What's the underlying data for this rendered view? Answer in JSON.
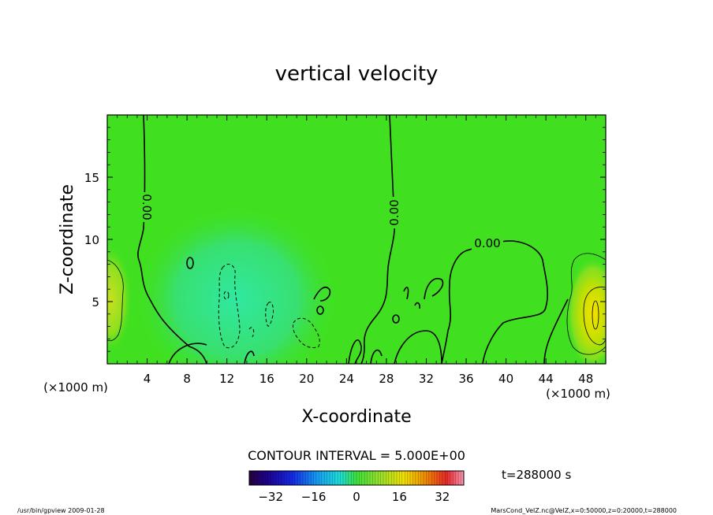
{
  "chart_data": {
    "type": "heatmap",
    "title": "vertical velocity",
    "xlabel": "X-coordinate",
    "ylabel": "Z-coordinate",
    "x_unit_left": "(×1000 m)",
    "x_unit_right": "(×1000 m)",
    "x_ticks": [
      "4",
      "8",
      "12",
      "16",
      "20",
      "24",
      "28",
      "32",
      "36",
      "40",
      "44",
      "48"
    ],
    "x_tick_values": [
      4,
      8,
      12,
      16,
      20,
      24,
      28,
      32,
      36,
      40,
      44,
      48
    ],
    "y_ticks": [
      "5",
      "10",
      "15"
    ],
    "y_tick_values": [
      5,
      10,
      15
    ],
    "xlim": [
      0,
      50
    ],
    "ylim": [
      0,
      20
    ],
    "contour_labels": [
      "0.00",
      "0.00",
      "0.00"
    ],
    "contour_interval": "CONTOUR INTERVAL = 5.000E+00",
    "colorbar": {
      "ticks": [
        "−32",
        "−16",
        "0",
        "16",
        "32"
      ],
      "tick_values": [
        -32,
        -16,
        0,
        16,
        32
      ],
      "range": [
        -40,
        40
      ]
    },
    "time_label": "t=288000 s",
    "footer_left": "/usr/bin/gpview 2009-01-28",
    "footer_right": "MarsCond_VelZ.nc@VelZ,x=0:50000,z=0:20000,t=288000"
  }
}
